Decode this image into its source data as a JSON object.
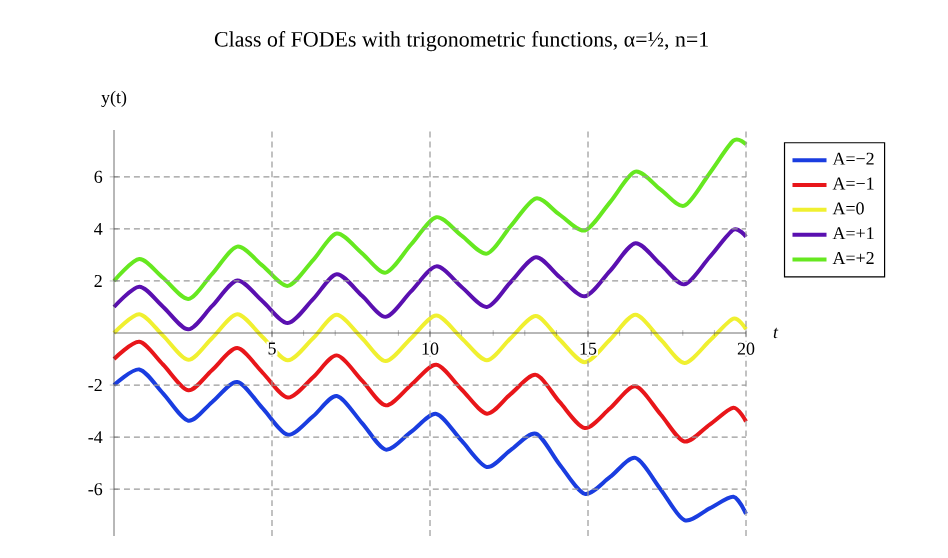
{
  "chart_data": {
    "type": "line",
    "title": "Class of FODEs with trigonometric functions, α=½, n=1",
    "xlabel": "t",
    "ylabel": "y(t)",
    "x": [
      0,
      0.8,
      1.55,
      2.35,
      3.1,
      3.9,
      4.7,
      5.5,
      6.3,
      7.05,
      7.85,
      8.6,
      9.4,
      10.2,
      11.0,
      11.8,
      12.55,
      13.35,
      14.1,
      14.9,
      15.7,
      16.5,
      17.3,
      18.05,
      18.85,
      19.6,
      20
    ],
    "series": [
      {
        "name": "A=−2",
        "color": "#1a3de0",
        "values": [
          -2,
          -1.4,
          -2.32,
          -3.37,
          -2.66,
          -1.88,
          -2.89,
          -3.91,
          -3.2,
          -2.42,
          -3.46,
          -4.48,
          -3.8,
          -3.11,
          -4.14,
          -5.15,
          -4.5,
          -3.87,
          -5.05,
          -6.18,
          -5.53,
          -4.8,
          -6.01,
          -7.19,
          -6.74,
          -6.29,
          -6.95
        ]
      },
      {
        "name": "A=−1",
        "color": "#e8161a",
        "values": [
          -1,
          -0.34,
          -1.21,
          -2.2,
          -1.43,
          -0.58,
          -1.52,
          -2.48,
          -1.7,
          -0.86,
          -1.83,
          -2.78,
          -2.0,
          -1.22,
          -2.17,
          -3.1,
          -2.35,
          -1.61,
          -2.65,
          -3.65,
          -2.89,
          -2.05,
          -3.13,
          -4.17,
          -3.52,
          -2.87,
          -3.4
        ]
      },
      {
        "name": "A=0",
        "color": "#f0f030",
        "values": [
          0,
          0.72,
          -0.1,
          -1.03,
          -0.2,
          0.72,
          -0.15,
          -1.05,
          -0.2,
          0.7,
          -0.2,
          -1.08,
          -0.2,
          0.67,
          -0.2,
          -1.05,
          -0.2,
          0.65,
          -0.25,
          -1.12,
          -0.25,
          0.7,
          -0.25,
          -1.15,
          -0.3,
          0.55,
          0.15
        ]
      },
      {
        "name": "A=+1",
        "color": "#5a10b0",
        "values": [
          1,
          1.78,
          1.01,
          0.14,
          1.03,
          2.02,
          1.22,
          0.38,
          1.3,
          2.26,
          1.43,
          0.62,
          1.6,
          2.56,
          1.77,
          1.0,
          1.95,
          2.91,
          2.15,
          1.41,
          2.39,
          3.45,
          2.63,
          1.87,
          2.92,
          3.97,
          3.7
        ]
      },
      {
        "name": "A=+2",
        "color": "#66e820",
        "values": [
          2,
          2.84,
          2.12,
          1.31,
          2.26,
          3.32,
          2.59,
          1.81,
          2.8,
          3.82,
          3.06,
          2.32,
          3.4,
          4.45,
          3.74,
          3.05,
          4.1,
          5.17,
          4.55,
          3.94,
          5.03,
          6.2,
          5.51,
          4.89,
          6.14,
          7.39,
          7.25
        ]
      }
    ],
    "xlim": [
      0,
      20
    ],
    "ylim": [
      -7.8,
      7.8
    ],
    "xticks": [
      5,
      10,
      15,
      20
    ],
    "yticks": [
      -6,
      -4,
      -2,
      2,
      4,
      6
    ],
    "grid": true,
    "legend": "top right",
    "marker": "none",
    "line_style": "solid"
  }
}
